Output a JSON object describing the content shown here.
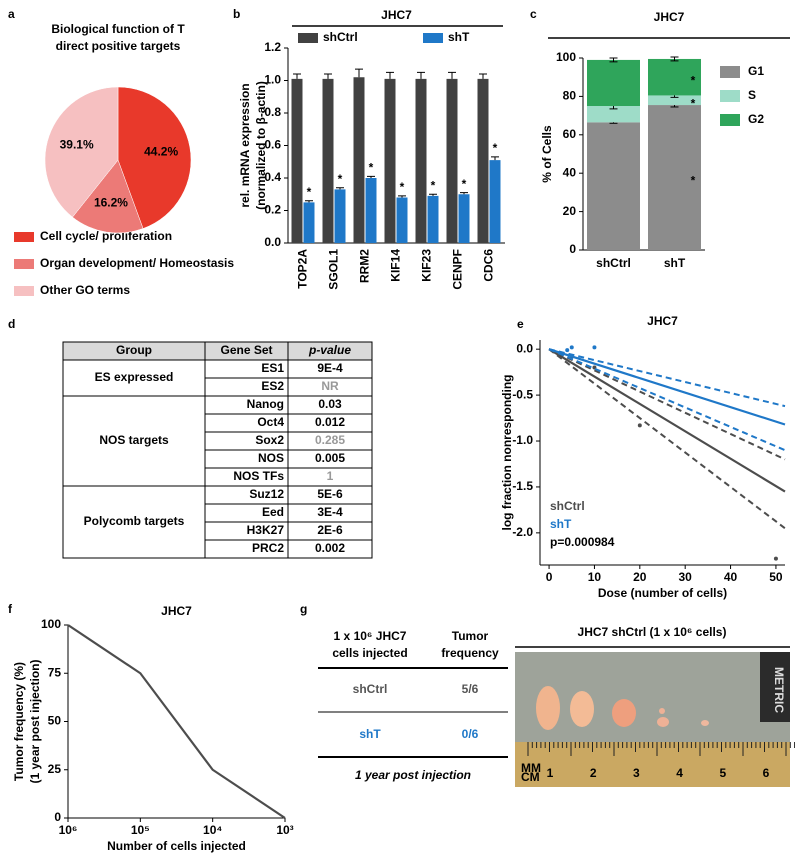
{
  "panels": [
    "a",
    "b",
    "c",
    "d",
    "e",
    "f",
    "g"
  ],
  "chart_data": [
    {
      "type": "pie",
      "title": [
        "Biological function of T",
        "direct positive targets"
      ],
      "categories": [
        "Cell cycle/ proliferation",
        "Organ development/ Homeostasis",
        "Other GO terms"
      ],
      "values": [
        44.2,
        16.2,
        39.1
      ],
      "value_labels": [
        "44.2%",
        "16.2%",
        "39.1%"
      ],
      "colors": [
        "#e8392b",
        "#ec7a77",
        "#f6c0c1"
      ]
    },
    {
      "type": "bar",
      "title": "JHC7",
      "ylabel": [
        "rel. mRNA expression",
        "(normalized to β-actin)"
      ],
      "categories": [
        "TOP2A",
        "SGOL1",
        "RRM2",
        "KIF14",
        "KIF23",
        "CENPF",
        "CDC6"
      ],
      "series": [
        {
          "name": "shCtrl",
          "color": "#414141",
          "values": [
            1.01,
            1.01,
            1.02,
            1.01,
            1.01,
            1.01,
            1.01
          ],
          "errors": [
            0.03,
            0.03,
            0.05,
            0.04,
            0.04,
            0.04,
            0.03
          ]
        },
        {
          "name": "shT",
          "color": "#1f78c8",
          "values": [
            0.25,
            0.33,
            0.4,
            0.28,
            0.29,
            0.3,
            0.51
          ],
          "errors": [
            0.01,
            0.01,
            0.01,
            0.01,
            0.01,
            0.01,
            0.02
          ],
          "annotations": [
            "*",
            "*",
            "*",
            "*",
            "*",
            "*",
            "*"
          ]
        }
      ],
      "ylim": [
        0,
        1.2
      ],
      "yticks": [
        {
          "value": 0,
          "label": "0.0"
        },
        0.2,
        0.4,
        0.6,
        0.8,
        {
          "value": 1,
          "label": "1.0"
        },
        1.2
      ]
    },
    {
      "type": "stacked_bar",
      "title": "JHC7",
      "ylabel": "% of Cells",
      "categories": [
        "shCtrl",
        "shT"
      ],
      "series": [
        {
          "name": "G1",
          "color": "#8c8c8c",
          "values": [
            66.5,
            75.5
          ],
          "errors": [
            0.5,
            1
          ],
          "annotations": [
            null,
            "*"
          ]
        },
        {
          "name": "S",
          "color": "#9edcc8",
          "values": [
            8.5,
            5
          ],
          "errors": [
            1.5,
            1
          ],
          "annotations": [
            null,
            "*"
          ]
        },
        {
          "name": "G2",
          "color": "#2fa55b",
          "values": [
            24,
            19
          ],
          "errors": [
            1,
            1
          ],
          "annotations": [
            null,
            "*"
          ]
        }
      ],
      "ylim": [
        0,
        100
      ],
      "yticks": [
        0,
        20,
        40,
        60,
        80,
        100
      ]
    },
    {
      "type": "line",
      "title": "JHC7",
      "xlabel": "Dose (number of cells)",
      "ylabel": "log fraction nonresponding",
      "xlim": [
        -2,
        52
      ],
      "ylim": [
        -2.35,
        0.1
      ],
      "xticks": [
        0,
        10,
        20,
        30,
        40,
        50
      ],
      "yticks": [
        {
          "value": 0,
          "label": "0.0"
        },
        -0.5,
        {
          "value": -1,
          "label": "-1.0"
        },
        -1.5,
        {
          "value": -2,
          "label": "-2.0"
        }
      ],
      "series": [
        {
          "name": "shCtrl",
          "color": "#4d4d4d",
          "x": [
            0,
            52
          ],
          "values": [
            0,
            -1.55
          ],
          "upper": [
            0,
            -1.2
          ],
          "lower": [
            0,
            -1.95
          ],
          "points_x": [
            5,
            10,
            20,
            50
          ],
          "points_y": [
            -0.08,
            -0.2,
            -0.83,
            -2.28
          ]
        },
        {
          "name": "shT",
          "color": "#1f78c8",
          "x": [
            0,
            52
          ],
          "values": [
            0,
            -0.82
          ],
          "upper": [
            0,
            -0.62
          ],
          "lower": [
            0,
            -1.1
          ],
          "points_x": [
            4,
            5,
            10
          ],
          "points_y": [
            -0.01,
            0.02,
            0.02
          ]
        }
      ],
      "annotation": "p=0.000984",
      "legend": "lower left"
    },
    {
      "type": "line",
      "title": "JHC7",
      "xlabel": "Number of cells injected",
      "ylabel": [
        "Tumor frequency (%)",
        "(1 year post injection)"
      ],
      "xlog": true,
      "xlim": [
        1000000,
        1000
      ],
      "xticks": [
        {
          "value": 1000000,
          "label": "10⁶"
        },
        {
          "value": 100000,
          "label": "10⁵"
        },
        {
          "value": 10000,
          "label": "10⁴"
        },
        {
          "value": 1000,
          "label": "10³"
        }
      ],
      "ylim": [
        0,
        100
      ],
      "yticks": [
        0,
        25,
        50,
        75,
        100
      ],
      "series": [
        {
          "color": "#4d4d4d",
          "x": [
            1000000,
            100000,
            10000,
            1000
          ],
          "values": [
            100,
            75,
            25,
            0
          ]
        }
      ]
    }
  ],
  "table": {
    "header": [
      "Group",
      "Gene Set",
      "p-value"
    ],
    "groups": [
      {
        "name": "ES expressed",
        "rows": [
          {
            "gene_set": "ES1",
            "p_value": "9E-4",
            "color": "#000000"
          },
          {
            "gene_set": "ES2",
            "p_value": "NR",
            "color": "#999999"
          }
        ]
      },
      {
        "name": "NOS targets",
        "rows": [
          {
            "gene_set": "Nanog",
            "p_value": "0.03",
            "color": "#000000"
          },
          {
            "gene_set": "Oct4",
            "p_value": "0.012",
            "color": "#000000"
          },
          {
            "gene_set": "Sox2",
            "p_value": "0.285",
            "color": "#999999"
          },
          {
            "gene_set": "NOS",
            "p_value": "0.005",
            "color": "#000000"
          },
          {
            "gene_set": "NOS TFs",
            "p_value": "1",
            "color": "#999999"
          }
        ]
      },
      {
        "name": "Polycomb targets",
        "rows": [
          {
            "gene_set": "Suz12",
            "p_value": "5E-6",
            "color": "#000000"
          },
          {
            "gene_set": "Eed",
            "p_value": "3E-4",
            "color": "#000000"
          },
          {
            "gene_set": "H3K27",
            "p_value": "2E-6",
            "color": "#000000"
          },
          {
            "gene_set": "PRC2",
            "p_value": "0.002",
            "color": "#000000"
          }
        ]
      }
    ]
  },
  "tumor_table": {
    "header": [
      [
        "1 x 10⁶ JHC7",
        "cells injected"
      ],
      [
        "Tumor",
        "frequency"
      ]
    ],
    "rows": [
      {
        "label": "shCtrl",
        "value": "5/6",
        "color": "#555555"
      },
      {
        "label": "shT",
        "value": "0/6",
        "color": "#1f78c8"
      }
    ],
    "footer": "1 year post injection"
  },
  "photo": {
    "title": "JHC7 shCtrl (1 x 10⁶ cells)",
    "ruler_labels": [
      "1",
      "2",
      "3",
      "4",
      "5",
      "6"
    ],
    "ruler_unit": [
      "MM",
      "CM"
    ],
    "scale_label": "METRIC"
  }
}
